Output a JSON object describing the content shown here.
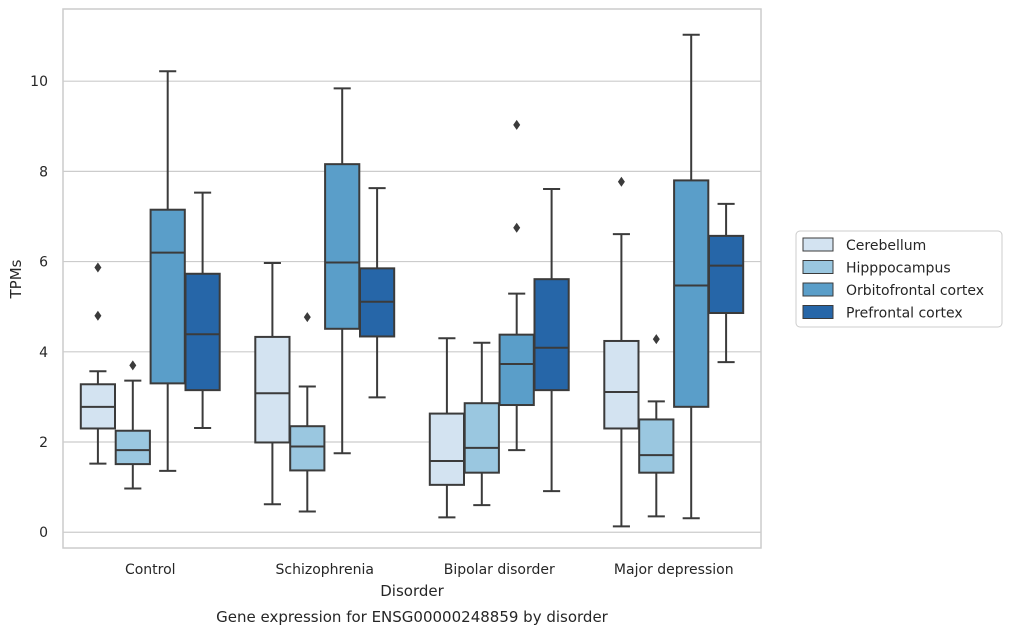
{
  "chart_data": {
    "type": "box",
    "caption": "Gene expression for ENSG00000248859 by disorder",
    "xlabel": "Disorder",
    "ylabel": "TPMs",
    "ylim": [
      -0.35,
      11.6
    ],
    "yticks": [
      0,
      2,
      4,
      6,
      8,
      10
    ],
    "grid": "horizontal",
    "legend_position": "right",
    "categories": [
      "Control",
      "Schizophrenia",
      "Bipolar disorder",
      "Major depression"
    ],
    "series": [
      {
        "name": "Cerebellum",
        "color": "#d3e3f1",
        "boxes": [
          {
            "whisker_low": 1.52,
            "q1": 2.3,
            "median": 2.78,
            "q3": 3.28,
            "whisker_high": 3.57,
            "outliers": [
              4.8,
              5.87
            ]
          },
          {
            "whisker_low": 0.62,
            "q1": 1.99,
            "median": 3.08,
            "q3": 4.33,
            "whisker_high": 5.97,
            "outliers": []
          },
          {
            "whisker_low": 0.33,
            "q1": 1.05,
            "median": 1.58,
            "q3": 2.63,
            "whisker_high": 4.3,
            "outliers": []
          },
          {
            "whisker_low": 0.13,
            "q1": 2.3,
            "median": 3.11,
            "q3": 4.24,
            "whisker_high": 6.61,
            "outliers": [
              7.77
            ]
          }
        ]
      },
      {
        "name": "Hipppocampus",
        "color": "#9ac7e0",
        "boxes": [
          {
            "whisker_low": 0.97,
            "q1": 1.51,
            "median": 1.82,
            "q3": 2.25,
            "whisker_high": 3.36,
            "outliers": [
              3.7
            ]
          },
          {
            "whisker_low": 0.46,
            "q1": 1.37,
            "median": 1.9,
            "q3": 2.35,
            "whisker_high": 3.23,
            "outliers": [
              4.77
            ]
          },
          {
            "whisker_low": 0.6,
            "q1": 1.32,
            "median": 1.87,
            "q3": 2.86,
            "whisker_high": 4.2,
            "outliers": []
          },
          {
            "whisker_low": 0.35,
            "q1": 1.32,
            "median": 1.71,
            "q3": 2.5,
            "whisker_high": 2.9,
            "outliers": [
              4.28
            ]
          }
        ]
      },
      {
        "name": "Orbitofrontal cortex",
        "color": "#5a9ec9",
        "boxes": [
          {
            "whisker_low": 1.36,
            "q1": 3.3,
            "median": 6.2,
            "q3": 7.15,
            "whisker_high": 10.22,
            "outliers": []
          },
          {
            "whisker_low": 1.75,
            "q1": 4.51,
            "median": 5.98,
            "q3": 8.16,
            "whisker_high": 9.84,
            "outliers": []
          },
          {
            "whisker_low": 1.82,
            "q1": 2.82,
            "median": 3.73,
            "q3": 4.38,
            "whisker_high": 5.29,
            "outliers": [
              6.75,
              9.03
            ]
          },
          {
            "whisker_low": 0.31,
            "q1": 2.78,
            "median": 5.47,
            "q3": 7.8,
            "whisker_high": 11.03,
            "outliers": []
          }
        ]
      },
      {
        "name": "Prefrontal cortex",
        "color": "#2666a8",
        "boxes": [
          {
            "whisker_low": 2.31,
            "q1": 3.15,
            "median": 4.39,
            "q3": 5.73,
            "whisker_high": 7.53,
            "outliers": []
          },
          {
            "whisker_low": 2.99,
            "q1": 4.34,
            "median": 5.11,
            "q3": 5.85,
            "whisker_high": 7.63,
            "outliers": []
          },
          {
            "whisker_low": 0.91,
            "q1": 3.15,
            "median": 4.09,
            "q3": 5.61,
            "whisker_high": 7.61,
            "outliers": []
          },
          {
            "whisker_low": 3.77,
            "q1": 4.86,
            "median": 5.91,
            "q3": 6.57,
            "whisker_high": 7.28,
            "outliers": []
          }
        ]
      }
    ]
  }
}
